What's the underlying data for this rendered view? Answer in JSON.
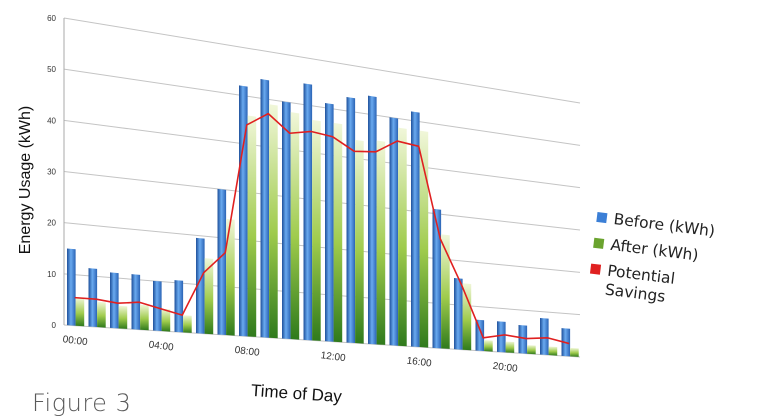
{
  "caption": "Figure 3",
  "chart_data": {
    "type": "bar",
    "xlabel": "Time of Day",
    "ylabel": "Energy Usage (kWh)",
    "ylim": [
      0,
      60
    ],
    "yticks": [
      0,
      10,
      20,
      30,
      40,
      50,
      60
    ],
    "x_tick_labels": [
      {
        "index": 0,
        "label": "00:00"
      },
      {
        "index": 4,
        "label": "04:00"
      },
      {
        "index": 8,
        "label": "08:00"
      },
      {
        "index": 12,
        "label": "12:00"
      },
      {
        "index": 16,
        "label": "16:00"
      },
      {
        "index": 20,
        "label": "20:00"
      }
    ],
    "categories": [
      "00:00",
      "01:00",
      "02:00",
      "03:00",
      "04:00",
      "05:00",
      "06:00",
      "07:00",
      "08:00",
      "09:00",
      "10:00",
      "11:00",
      "12:00",
      "13:00",
      "14:00",
      "15:00",
      "16:00",
      "17:00",
      "18:00",
      "19:00",
      "20:00",
      "21:00",
      "22:00",
      "23:00"
    ],
    "grid": true,
    "legend_position": "right",
    "series": [
      {
        "name": "Before (kWh)",
        "type": "bar",
        "color": "#3b7fd6",
        "values": [
          15,
          11.5,
          11,
          11,
          10,
          10.5,
          19.5,
          30,
          52,
          54,
          50,
          54.5,
          51,
          53,
          54,
          50,
          52,
          31,
          16,
          7,
          7,
          6.5,
          8.5,
          6.5
        ]
      },
      {
        "name": "After (kWh)",
        "type": "bar",
        "color": "#6aa32e",
        "values": [
          5.5,
          5,
          4.5,
          5,
          4.5,
          3.5,
          15.5,
          24,
          46,
          49,
          48,
          47,
          47,
          44,
          44.5,
          48,
          48,
          25.5,
          15,
          2.5,
          2.5,
          2,
          2,
          2
        ]
      },
      {
        "name": "Potential Savings",
        "type": "line",
        "color": "#e02020",
        "values": [
          5.5,
          5.5,
          5,
          5.5,
          4.5,
          3.5,
          12.5,
          17,
          44,
          47,
          43.5,
          44.5,
          44,
          41.5,
          42,
          45,
          44.5,
          24.5,
          14.5,
          3,
          4,
          3.5,
          4,
          3
        ]
      }
    ]
  },
  "legend": {
    "items": [
      {
        "label": "Before (kWh)",
        "color": "#3b7fd6"
      },
      {
        "label": "After (kWh)",
        "color": "#6aa32e"
      },
      {
        "label": "Potential Savings",
        "color": "#e02020"
      }
    ]
  }
}
